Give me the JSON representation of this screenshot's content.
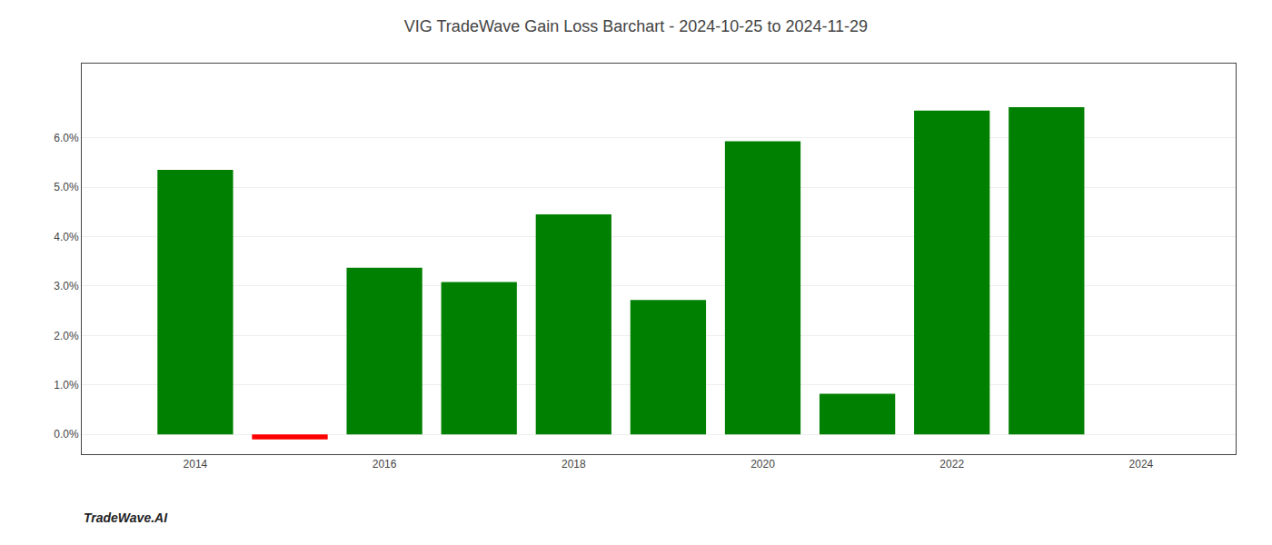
{
  "chart_data": {
    "type": "bar",
    "title": "VIG TradeWave Gain Loss Barchart - 2024-10-25 to 2024-11-29",
    "annotations": [
      {
        "text": "TradeWave.AI"
      }
    ],
    "x": [
      2014,
      2015,
      2016,
      2017,
      2018,
      2019,
      2020,
      2021,
      2022,
      2023
    ],
    "values": [
      0.0535,
      -0.001,
      0.0337,
      0.0308,
      0.0445,
      0.0272,
      0.0593,
      0.0082,
      0.0655,
      0.0662
    ],
    "colors": [
      "#008000",
      "#ff0000",
      "#008000",
      "#008000",
      "#008000",
      "#008000",
      "#008000",
      "#008000",
      "#008000",
      "#008000"
    ],
    "xlim": [
      2012.8,
      2025.0
    ],
    "xticks": [
      2014,
      2016,
      2018,
      2020,
      2022,
      2024
    ],
    "ylim": [
      -0.004,
      0.075
    ],
    "yticks": [
      {
        "value": 0.0,
        "label": "0.0%"
      },
      {
        "value": 0.01,
        "label": "1.0%"
      },
      {
        "value": 0.02,
        "label": "2.0%"
      },
      {
        "value": 0.03,
        "label": "3.0%"
      },
      {
        "value": 0.04,
        "label": "4.0%"
      },
      {
        "value": 0.05,
        "label": "5.0%"
      },
      {
        "value": 0.06,
        "label": "6.0%"
      }
    ],
    "grid": true
  }
}
